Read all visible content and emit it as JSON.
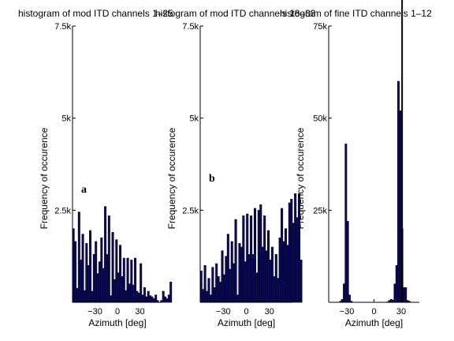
{
  "chart_data": [
    {
      "type": "bar",
      "title": "histogram of mod ITD channels 1–25",
      "xlabel": "Azimuth [deg]",
      "ylabel": "Frequency of occurence",
      "annotation": "a",
      "xlim": [
        -60,
        60
      ],
      "ylim": [
        0,
        7500
      ],
      "xticks": [
        -30,
        0,
        30
      ],
      "xtick_labels": [
        "−30",
        "0",
        "30"
      ],
      "yticks": [
        2500,
        5000,
        7500
      ],
      "ytick_labels": [
        "2.5k",
        "5k",
        "7.5k"
      ],
      "bin_start": -60,
      "bin_width": 2.5,
      "values": [
        2000,
        1650,
        380,
        2450,
        1150,
        1850,
        320,
        1600,
        1000,
        1950,
        300,
        1300,
        1650,
        780,
        1100,
        1750,
        920,
        2600,
        1300,
        2350,
        180,
        1900,
        620,
        1700,
        800,
        1550,
        700,
        1200,
        320,
        1200,
        500,
        1150,
        470,
        1200,
        300,
        250,
        1050,
        200,
        400,
        150,
        300,
        180,
        150,
        100,
        200,
        50,
        0,
        50,
        300,
        150,
        100,
        200,
        550
      ]
    },
    {
      "type": "bar",
      "title": "histogram of mod ITD channels 18–33",
      "xlabel": "Azimuth [deg]",
      "ylabel": "Frequency of occurence",
      "annotation": "b",
      "xlim": [
        -60,
        60
      ],
      "ylim": [
        0,
        7500
      ],
      "xticks": [
        -30,
        0,
        30
      ],
      "xtick_labels": [
        "−30",
        "0",
        "30"
      ],
      "yticks": [
        2500,
        5000,
        7500
      ],
      "ytick_labels": [
        "2.5k",
        "5k",
        "7.5k"
      ],
      "bin_start": -60,
      "bin_width": 2.5,
      "values": [
        850,
        350,
        1000,
        300,
        650,
        200,
        950,
        400,
        1050,
        700,
        550,
        1400,
        750,
        1250,
        1850,
        900,
        1650,
        1050,
        2250,
        200,
        1600,
        1500,
        2350,
        1100,
        2400,
        1300,
        2350,
        1300,
        2550,
        800,
        2500,
        2650,
        1500,
        2350,
        1400,
        1950,
        1150,
        1500,
        700,
        1300,
        650,
        1750,
        2550,
        1650,
        2000,
        1550,
        2700,
        2800,
        2150,
        2950,
        2300,
        2950,
        1150
      ]
    },
    {
      "type": "bar",
      "title": "histogram of fine ITD channels 1–12",
      "xlabel": "Azimuth [deg]",
      "ylabel": "Frequency of occurence",
      "xlim": [
        -50,
        50
      ],
      "ylim": [
        0,
        75000
      ],
      "xticks": [
        -30,
        0,
        30
      ],
      "xtick_labels": [
        "−30",
        "0",
        "30"
      ],
      "yticks": [
        25000,
        50000,
        75000
      ],
      "ytick_labels": [
        "25k",
        "50k",
        "75k"
      ],
      "bin_start": -50,
      "bin_width": 2,
      "values": [
        0,
        0,
        0,
        0,
        0,
        0,
        300,
        800,
        5000,
        43000,
        22000,
        2000,
        300,
        0,
        0,
        0,
        0,
        0,
        0,
        0,
        0,
        0,
        0,
        0,
        0,
        0,
        0,
        0,
        0,
        0,
        0,
        0,
        100,
        500,
        800,
        600,
        5000,
        10000,
        60000,
        52000,
        20000,
        4000,
        4000,
        500,
        300,
        0,
        0,
        0,
        0,
        0
      ],
      "vertical_line_x": 31
    }
  ]
}
